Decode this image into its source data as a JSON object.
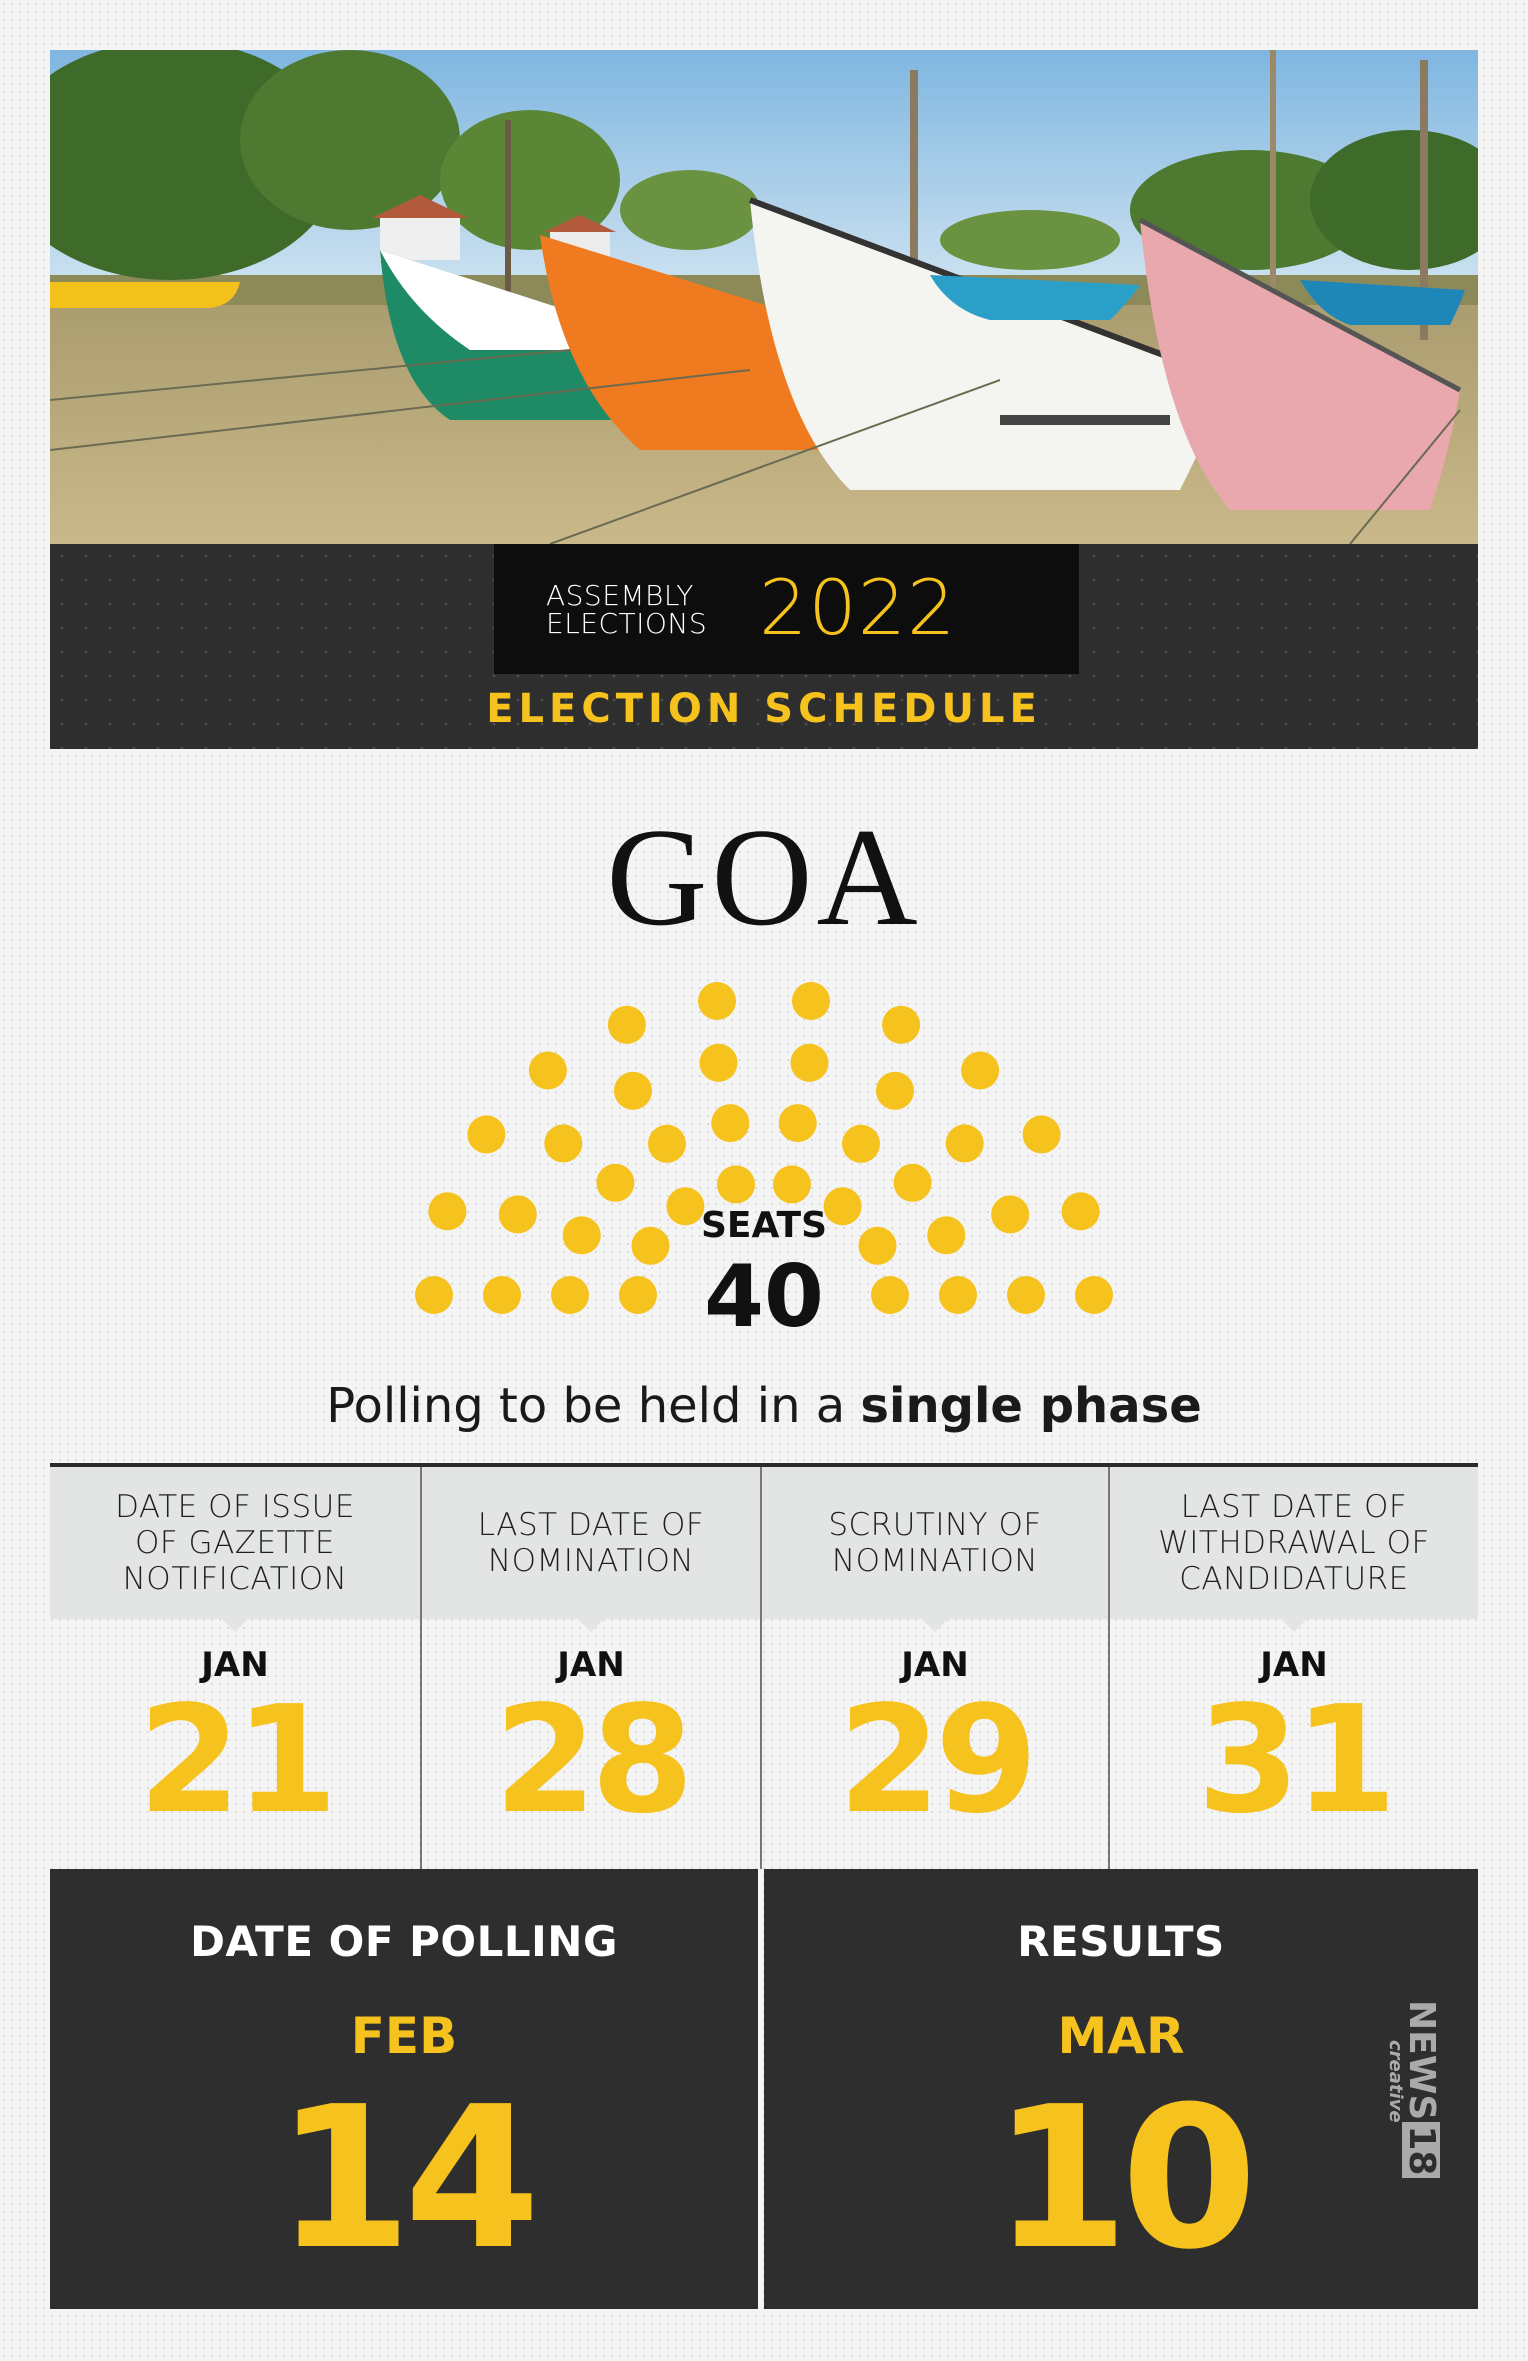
{
  "header": {
    "title_line1": "ASSEMBLY",
    "title_line2": "ELECTIONS",
    "year": "2022",
    "subtitle": "ELECTION SCHEDULE"
  },
  "state": "GOA",
  "seats": {
    "label": "SEATS",
    "count": "40"
  },
  "phase": {
    "prefix": "Polling to be held in a ",
    "emphasis": "single phase"
  },
  "schedule": [
    {
      "label": "DATE OF ISSUE\nOF GAZETTE\nNOTIFICATION",
      "month": "JAN",
      "day": "21"
    },
    {
      "label": "LAST DATE OF\nNOMINATION",
      "month": "JAN",
      "day": "28"
    },
    {
      "label": "SCRUTINY OF\nNOMINATION",
      "month": "JAN",
      "day": "29"
    },
    {
      "label": "LAST DATE OF\nWITHDRAWAL OF\nCANDIDATURE",
      "month": "JAN",
      "day": "31"
    }
  ],
  "polling": {
    "label": "DATE OF POLLING",
    "month": "FEB",
    "day": "14"
  },
  "results": {
    "label": "RESULTS",
    "month": "MAR",
    "day": "10"
  },
  "brand": {
    "name": "NEWS",
    "number": "18",
    "tag": "creative"
  },
  "colors": {
    "accent": "#f6c21d",
    "dark": "#2e2e2e",
    "head_bg": "#e2e5e4"
  }
}
